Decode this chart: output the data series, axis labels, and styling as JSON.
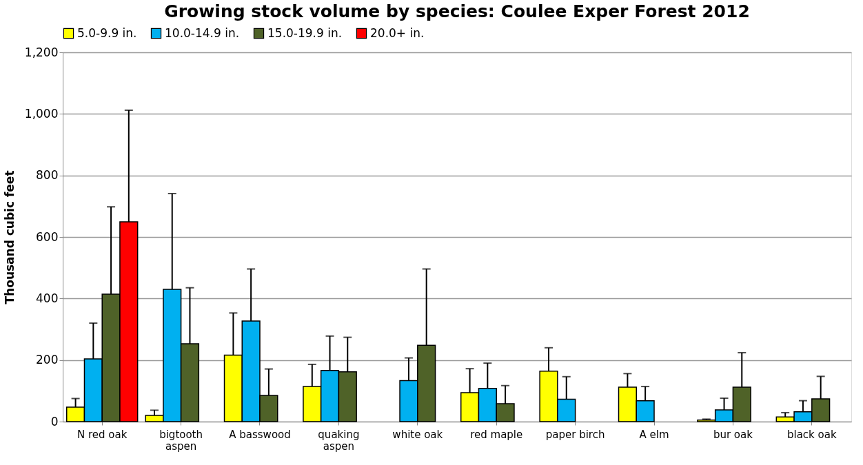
{
  "chart_data": {
    "type": "bar",
    "title": "Growing stock volume by species:  Coulee Exper Forest 2012",
    "ylabel": "Thousand cubic feet",
    "categories": [
      "N red oak",
      "bigtooth aspen",
      "A basswood",
      "quaking aspen",
      "white oak",
      "red maple",
      "paper birch",
      "A elm",
      "bur oak",
      "black oak"
    ],
    "series": [
      {
        "name": "5.0-9.9 in.",
        "color": "#ffff00",
        "values": [
          47,
          20,
          216,
          114,
          null,
          94,
          164,
          112,
          5,
          15
        ],
        "errors": [
          [
            47,
            75
          ],
          [
            20,
            37
          ],
          [
            216,
            353
          ],
          [
            114,
            186
          ],
          null,
          [
            94,
            172
          ],
          [
            164,
            240
          ],
          [
            112,
            156
          ],
          [
            5,
            8
          ],
          [
            15,
            29
          ]
        ]
      },
      {
        "name": "10.0-14.9 in.",
        "color": "#00b0f0",
        "values": [
          204,
          430,
          327,
          166,
          133,
          108,
          73,
          68,
          38,
          32
        ],
        "errors": [
          [
            204,
            320
          ],
          [
            430,
            741
          ],
          [
            327,
            496
          ],
          [
            166,
            278
          ],
          [
            133,
            207
          ],
          [
            108,
            190
          ],
          [
            73,
            146
          ],
          [
            68,
            114
          ],
          [
            38,
            76
          ],
          [
            32,
            68
          ]
        ]
      },
      {
        "name": "15.0-19.9 in.",
        "color": "#4f6228",
        "values": [
          414,
          253,
          85,
          162,
          248,
          58,
          null,
          null,
          112,
          74
        ],
        "errors": [
          [
            414,
            698
          ],
          [
            253,
            435
          ],
          [
            85,
            171
          ],
          [
            162,
            274
          ],
          [
            248,
            496
          ],
          [
            58,
            117
          ],
          null,
          null,
          [
            112,
            224
          ],
          [
            74,
            147
          ]
        ]
      },
      {
        "name": "20.0+ in.",
        "color": "#ff0000",
        "values": [
          649,
          null,
          null,
          null,
          null,
          null,
          null,
          null,
          null,
          null
        ],
        "errors": [
          [
            649,
            1012
          ],
          null,
          null,
          null,
          null,
          null,
          null,
          null,
          null,
          null
        ]
      }
    ],
    "ylim": [
      0,
      1200
    ],
    "yticks": [
      0,
      {
        "value": 200,
        "label": "200"
      },
      {
        "value": 400,
        "label": "400"
      },
      {
        "value": 600,
        "label": "600"
      },
      {
        "value": 800,
        "label": "800"
      },
      {
        "value": 1000,
        "label": "1,000"
      },
      {
        "value": 1200,
        "label": "1,200"
      }
    ],
    "grid": "y",
    "legend": "top"
  }
}
